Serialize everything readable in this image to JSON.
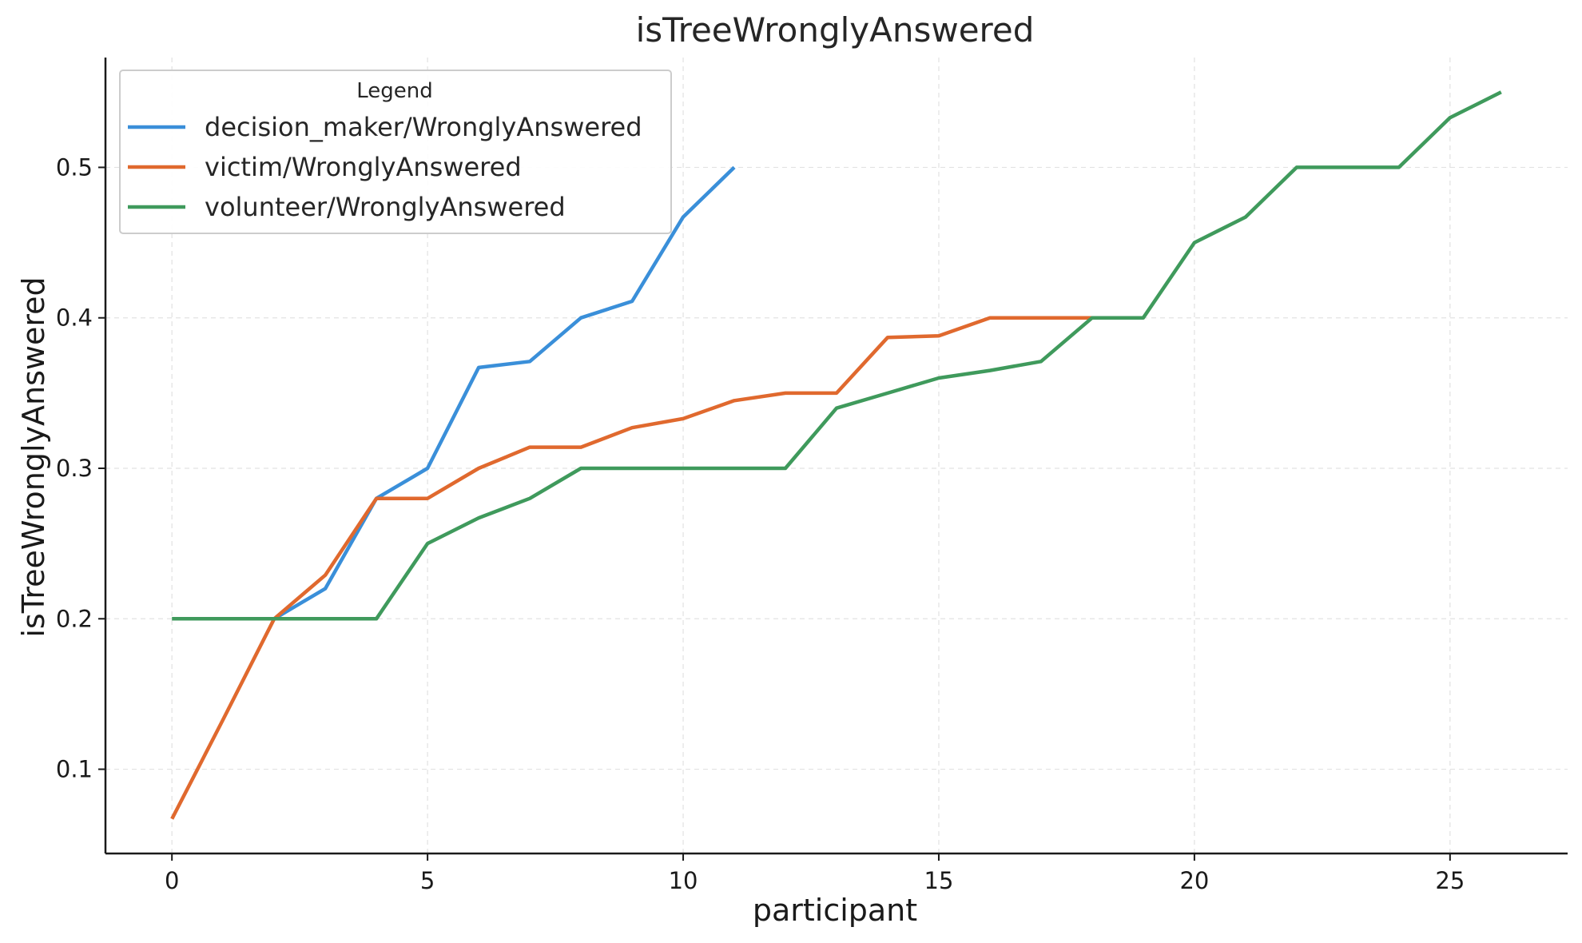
{
  "chart_data": {
    "type": "line",
    "title": "isTreeWronglyAnswered",
    "xlabel": "participant",
    "ylabel": "isTreeWronglyAnswered",
    "xlim": [
      -1.3,
      27.3
    ],
    "ylim": [
      0.044,
      0.573
    ],
    "xticks": [
      0,
      5,
      10,
      15,
      20,
      25
    ],
    "xtick_labels": [
      "0",
      "5",
      "10",
      "15",
      "20",
      "25"
    ],
    "yticks": [
      0.1,
      0.2,
      0.3,
      0.4,
      0.5
    ],
    "ytick_labels": [
      "0.1",
      "0.2",
      "0.3",
      "0.4",
      "0.5"
    ],
    "grid": true,
    "legend": {
      "title": "Legend",
      "placement": "top-left"
    },
    "series": [
      {
        "name": "decision_maker/WronglyAnswered",
        "color": "#3a8fd9",
        "x": [
          2,
          3,
          4,
          5,
          6,
          7,
          8,
          9,
          10,
          11
        ],
        "y": [
          0.2,
          0.22,
          0.28,
          0.3,
          0.367,
          0.371,
          0.4,
          0.411,
          0.467,
          0.5
        ]
      },
      {
        "name": "victim/WronglyAnswered",
        "color": "#e0692e",
        "x": [
          0,
          1,
          2,
          3,
          4,
          5,
          6,
          7,
          8,
          9,
          10,
          11,
          12,
          13,
          14,
          15,
          16,
          17,
          18
        ],
        "y": [
          0.067,
          0.133,
          0.2,
          0.229,
          0.28,
          0.28,
          0.3,
          0.314,
          0.314,
          0.327,
          0.333,
          0.345,
          0.35,
          0.35,
          0.387,
          0.388,
          0.4,
          0.4,
          0.4
        ]
      },
      {
        "name": "volunteer/WronglyAnswered",
        "color": "#3f9a5c",
        "x": [
          0,
          1,
          2,
          3,
          4,
          5,
          6,
          7,
          8,
          9,
          10,
          11,
          12,
          13,
          14,
          15,
          16,
          17,
          18,
          19,
          20,
          21,
          22,
          23,
          24,
          25,
          26
        ],
        "y": [
          0.2,
          0.2,
          0.2,
          0.2,
          0.2,
          0.25,
          0.267,
          0.28,
          0.3,
          0.3,
          0.3,
          0.3,
          0.3,
          0.34,
          0.35,
          0.36,
          0.365,
          0.371,
          0.4,
          0.4,
          0.45,
          0.467,
          0.5,
          0.5,
          0.5,
          0.533,
          0.55
        ]
      }
    ]
  }
}
